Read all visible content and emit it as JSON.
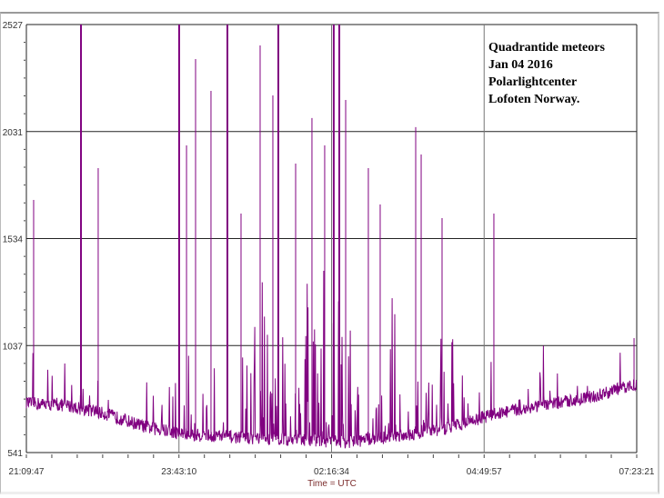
{
  "chart_data": {
    "type": "line",
    "title_lines": [
      "Quadrantide meteors",
      "Jan 04 2016",
      "Polarlightcenter",
      "Lofoten  Norway."
    ],
    "xlabel": "Time = UTC",
    "ylabel": "",
    "x_unit": "minutes since 21:09:47",
    "xlim": [
      0,
      613.6
    ],
    "ylim": [
      541,
      2527
    ],
    "yticks": [
      "2527",
      "2031",
      "1534",
      "1037",
      "541"
    ],
    "xticks": [
      "21:09:47",
      "23:43:10",
      "02:16:34",
      "04:49:57",
      "07:23:21"
    ],
    "grid": true,
    "color": "#800080",
    "baseline": [
      [
        0,
        770
      ],
      [
        40,
        760
      ],
      [
        80,
        720
      ],
      [
        120,
        660
      ],
      [
        160,
        625
      ],
      [
        220,
        610
      ],
      [
        280,
        600
      ],
      [
        320,
        590
      ],
      [
        360,
        610
      ],
      [
        420,
        650
      ],
      [
        470,
        720
      ],
      [
        520,
        760
      ],
      [
        570,
        800
      ],
      [
        613.6,
        860
      ]
    ],
    "peaks": [
      [
        7.3,
        1713
      ],
      [
        54.9,
        2527
      ],
      [
        72.2,
        1861
      ],
      [
        153.6,
        2527
      ],
      [
        161,
        1966
      ],
      [
        170.1,
        2367
      ],
      [
        185.6,
        2219
      ],
      [
        202.1,
        2527
      ],
      [
        215.8,
        1650
      ],
      [
        235,
        2430
      ],
      [
        247.8,
        2198
      ],
      [
        253.3,
        2527
      ],
      [
        270.7,
        1882
      ],
      [
        287.1,
        2093
      ],
      [
        299.9,
        1966
      ],
      [
        309,
        2527
      ],
      [
        314.6,
        2527
      ],
      [
        321,
        2177
      ],
      [
        343.8,
        1861
      ],
      [
        355.7,
        1692
      ],
      [
        391.4,
        2051
      ],
      [
        396.9,
        1924
      ],
      [
        417.9,
        1629
      ],
      [
        470,
        1650
      ],
      [
        610.9,
        1072
      ]
    ]
  }
}
